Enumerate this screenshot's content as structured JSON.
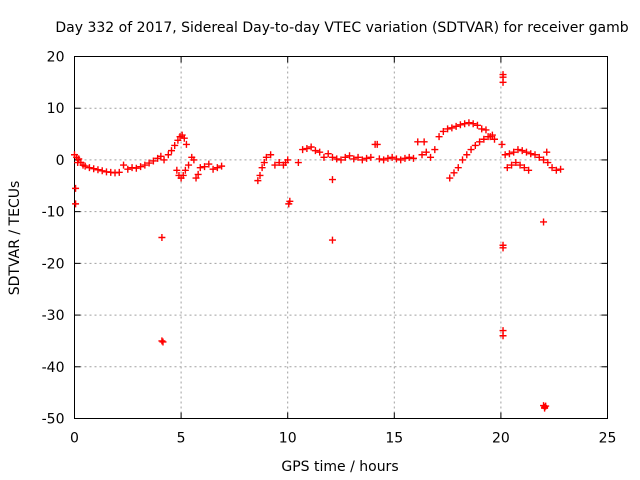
{
  "chart_data": {
    "type": "scatter",
    "title": "Day 332 of 2017, Sidereal Day-to-day VTEC variation (SDTVAR) for receiver gamb",
    "xlabel": "GPS time / hours",
    "ylabel": "SDTVAR / TECUs",
    "xlim": [
      0,
      25
    ],
    "ylim": [
      -50,
      20
    ],
    "xticks": [
      "0",
      "5",
      "10",
      "15",
      "20",
      "25"
    ],
    "yticks": [
      "20",
      "10",
      "0",
      "-10",
      "-20",
      "-30",
      "-40",
      "-50"
    ],
    "grid": true,
    "marker": "+",
    "color": "#ff0000",
    "series": [
      {
        "name": "SDTVAR",
        "x": [
          0.0,
          0.1,
          0.15,
          0.2,
          0.3,
          0.4,
          0.5,
          0.7,
          0.9,
          1.1,
          1.3,
          1.5,
          1.7,
          1.9,
          2.1,
          2.3,
          2.5,
          2.7,
          2.9,
          3.1,
          3.3,
          3.5,
          3.7,
          3.9,
          4.05,
          4.2,
          4.4,
          4.55,
          4.7,
          4.85,
          4.95,
          5.05,
          5.15,
          5.25,
          4.8,
          4.9,
          5.0,
          5.1,
          5.2,
          5.35,
          5.5,
          5.6,
          5.7,
          5.8,
          5.9,
          6.1,
          6.3,
          6.5,
          6.7,
          6.9,
          8.6,
          8.7,
          8.8,
          8.9,
          9.0,
          9.2,
          9.4,
          9.6,
          9.8,
          9.9,
          10.0,
          10.5,
          10.7,
          10.9,
          11.1,
          11.3,
          11.5,
          11.7,
          11.9,
          12.1,
          12.3,
          12.5,
          12.7,
          12.9,
          13.1,
          13.3,
          13.5,
          13.7,
          13.9,
          14.1,
          14.3,
          14.5,
          14.7,
          14.9,
          15.1,
          15.3,
          15.5,
          15.7,
          15.9,
          16.1,
          16.3,
          16.5,
          16.7,
          16.9,
          17.1,
          17.3,
          17.5,
          17.7,
          17.9,
          18.1,
          18.3,
          18.5,
          18.7,
          18.9,
          19.1,
          19.3,
          19.5,
          19.7,
          17.6,
          17.8,
          18.0,
          18.2,
          18.4,
          18.6,
          18.8,
          19.0,
          19.2,
          19.4,
          19.6,
          20.2,
          20.4,
          20.6,
          20.8,
          21.0,
          21.2,
          21.4,
          21.6,
          21.8,
          22.0,
          22.2,
          22.4,
          22.6,
          22.8,
          20.3,
          20.5,
          20.7,
          20.9,
          21.1,
          21.3,
          20.1,
          20.1,
          20.1,
          20.05,
          20.1,
          20.1,
          20.1,
          20.1,
          0.05,
          0.05,
          4.1,
          4.1,
          4.15,
          10.05,
          10.1,
          12.1,
          12.1,
          14.2,
          16.4,
          22.0,
          22.0,
          22.05,
          22.1,
          22.15,
          22.05
        ],
        "y": [
          1.0,
          0.5,
          -0.5,
          0.2,
          -0.5,
          -1.0,
          -1.2,
          -1.5,
          -1.7,
          -1.9,
          -2.1,
          -2.3,
          -2.4,
          -2.5,
          -2.4,
          -1.0,
          -1.8,
          -1.5,
          -1.6,
          -1.3,
          -1.0,
          -0.6,
          -0.2,
          0.3,
          0.7,
          0.0,
          1.0,
          1.8,
          2.8,
          3.8,
          4.5,
          4.8,
          4.2,
          3.0,
          -2.0,
          -3.0,
          -3.5,
          -3.0,
          -2.0,
          -1.0,
          0.5,
          0.0,
          -3.5,
          -2.8,
          -1.5,
          -1.3,
          -0.8,
          -1.8,
          -1.5,
          -1.2,
          -4.0,
          -3.0,
          -1.5,
          -0.5,
          0.5,
          1.0,
          -1.0,
          -0.5,
          -1.0,
          -0.5,
          0.0,
          -0.5,
          2.0,
          2.2,
          2.5,
          1.8,
          1.5,
          0.5,
          1.2,
          0.5,
          0.2,
          0.0,
          0.5,
          0.8,
          0.2,
          0.5,
          0.0,
          0.3,
          0.5,
          3.0,
          0.2,
          0.0,
          0.3,
          0.5,
          0.2,
          0.0,
          0.3,
          0.5,
          0.3,
          3.5,
          1.0,
          1.5,
          0.5,
          2.0,
          4.5,
          5.5,
          6.0,
          6.2,
          6.5,
          6.8,
          7.0,
          7.2,
          7.0,
          6.7,
          6.0,
          5.8,
          4.5,
          4.0,
          -3.5,
          -2.5,
          -1.5,
          0.0,
          1.0,
          2.0,
          2.8,
          3.5,
          4.0,
          4.5,
          4.8,
          1.0,
          1.2,
          1.5,
          2.0,
          1.8,
          1.5,
          1.2,
          1.0,
          0.5,
          0.0,
          -0.5,
          -1.5,
          -2.0,
          -1.8,
          -1.5,
          -1.0,
          -0.5,
          -1.0,
          -1.5,
          -2.0,
          16.5,
          16.0,
          15.0,
          3.0,
          -16.5,
          -17.0,
          -33.0,
          -34.0,
          -5.5,
          -8.5,
          -15.0,
          -35.0,
          -35.2,
          -8.5,
          -8.0,
          -15.5,
          -3.8,
          3.0,
          3.5,
          -12.0,
          -47.5,
          -47.8,
          -47.6,
          1.5,
          -48.0
        ]
      }
    ]
  }
}
